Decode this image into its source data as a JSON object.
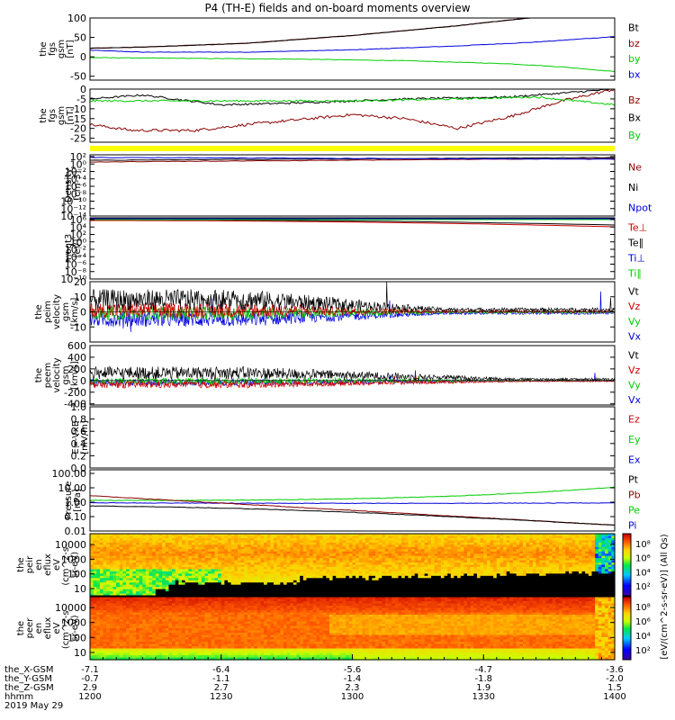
{
  "title": "P4 (TH-E) fields and on-board moments overview",
  "colors": {
    "black": "#000000",
    "red": "#cc0000",
    "dark_red": "#8b0000",
    "blue": "#0000dd",
    "green": "#00cc00",
    "yellow": "#ffff00"
  },
  "chart_data": [
    {
      "type": "line",
      "panel": "fgs-mag",
      "ylabel": [
        "the",
        "fgs",
        "gsm",
        "[nT]"
      ],
      "ylim": [
        -60,
        100
      ],
      "yticks": [
        100,
        50,
        0,
        -50
      ],
      "legend": [
        "Bt",
        "bz",
        "by",
        "bx"
      ],
      "series": [
        {
          "name": "Bt",
          "color": "#000000",
          "x": [
            0,
            0.1,
            0.3,
            0.5,
            0.7,
            0.8,
            0.9,
            1.0
          ],
          "values": [
            22,
            25,
            35,
            55,
            80,
            95,
            108,
            120
          ]
        },
        {
          "name": "bz",
          "color": "#8b0000",
          "x": [
            0,
            0.1,
            0.3,
            0.5,
            0.7,
            0.8,
            0.9,
            1.0
          ],
          "values": [
            22,
            25,
            35,
            55,
            80,
            95,
            108,
            120
          ]
        },
        {
          "name": "by",
          "color": "#00cc00",
          "x": [
            0,
            0.2,
            0.4,
            0.6,
            0.8,
            0.9,
            1.0
          ],
          "values": [
            -2,
            -4,
            -6,
            -10,
            -18,
            -26,
            -38
          ]
        },
        {
          "name": "bx",
          "color": "#0000dd",
          "x": [
            0,
            0.1,
            0.3,
            0.5,
            0.7,
            0.85,
            1.0
          ],
          "values": [
            17,
            12,
            12,
            18,
            28,
            38,
            52
          ]
        }
      ]
    },
    {
      "type": "line",
      "panel": "fgs-dc",
      "ylabel": [
        "the",
        "fgs",
        "gsm",
        "[nT]"
      ],
      "ylim": [
        -27,
        0
      ],
      "yticks": [
        0,
        -5,
        -10,
        -15,
        -20,
        -25
      ],
      "legend": [
        "Bz",
        "Bx",
        "By"
      ],
      "series": [
        {
          "name": "Bz",
          "color": "#8b0000",
          "x": [
            0,
            0.08,
            0.2,
            0.3,
            0.5,
            0.6,
            0.7,
            0.8,
            0.9,
            1.0
          ],
          "values": [
            -18,
            -21,
            -21,
            -18,
            -13,
            -15,
            -20,
            -14,
            -6,
            0
          ]
        },
        {
          "name": "Bx",
          "color": "#000000",
          "x": [
            0,
            0.1,
            0.25,
            0.4,
            0.6,
            0.8,
            0.9,
            1.0
          ],
          "values": [
            -5,
            -3,
            -8,
            -7,
            -5,
            -4,
            -2,
            0
          ]
        },
        {
          "name": "By",
          "color": "#00cc00",
          "x": [
            0,
            0.3,
            0.5,
            0.7,
            0.85,
            1.0
          ],
          "values": [
            -6,
            -6,
            -6,
            -5,
            -4,
            -8
          ]
        }
      ]
    },
    {
      "type": "line",
      "panel": "density",
      "scale": "log",
      "ylabel": [
        "Density",
        "[cm-3]"
      ],
      "yticks": [
        "10²",
        "10⁰",
        "10⁻²",
        "10⁻⁴",
        "10⁻⁶",
        "10⁻⁸",
        "10⁻¹⁰",
        "10⁻¹²",
        "10⁻¹⁴"
      ],
      "legend": [
        "Ne",
        "Ni",
        "Npot"
      ],
      "series": [
        {
          "name": "Ne",
          "color": "#8b0000"
        },
        {
          "name": "Ni",
          "color": "#000000"
        },
        {
          "name": "Npot",
          "color": "#0000dd"
        }
      ]
    },
    {
      "type": "line",
      "panel": "temperature",
      "scale": "log",
      "ylabel": [
        "moqt3",
        "[eV]"
      ],
      "yticks": [
        "10⁶",
        "10⁴",
        "10²",
        "10⁰",
        "10⁻²",
        "10⁻⁴",
        "10⁻⁶",
        "10⁻⁸",
        "10⁻¹⁰"
      ],
      "legend": [
        "Te⊥",
        "Te∥",
        "Ti⊥",
        "Ti∥"
      ],
      "series": [
        {
          "name": "Te⊥",
          "color": "#cc0000"
        },
        {
          "name": "Te∥",
          "color": "#000000"
        },
        {
          "name": "Ti⊥",
          "color": "#0000dd"
        },
        {
          "name": "Ti∥",
          "color": "#00cc00"
        }
      ]
    },
    {
      "type": "line",
      "panel": "peim-velocity",
      "ylabel": [
        "the",
        "peim",
        "velocity",
        "gsm",
        "[km/s]"
      ],
      "ylim": [
        -20,
        20
      ],
      "yticks": [
        20,
        10,
        0,
        -10
      ],
      "legend": [
        "Vt",
        "Vz",
        "Vy",
        "Vx"
      ],
      "series": [
        {
          "name": "Vt",
          "color": "#000000"
        },
        {
          "name": "Vz",
          "color": "#cc0000"
        },
        {
          "name": "Vy",
          "color": "#00cc00"
        },
        {
          "name": "Vx",
          "color": "#0000dd"
        }
      ]
    },
    {
      "type": "line",
      "panel": "peem-velocity",
      "ylabel": [
        "the",
        "peem",
        "velocity",
        "gsm",
        "[km/s]"
      ],
      "ylim": [
        -420,
        600
      ],
      "yticks": [
        600,
        400,
        200,
        0,
        -200,
        -400
      ],
      "legend": [
        "Vt",
        "Vz",
        "Vy",
        "Vx"
      ],
      "series": [
        {
          "name": "Vt",
          "color": "#000000"
        },
        {
          "name": "Vz",
          "color": "#cc0000"
        },
        {
          "name": "Vy",
          "color": "#00cc00"
        },
        {
          "name": "Vx",
          "color": "#0000dd"
        }
      ]
    },
    {
      "type": "line",
      "panel": "efield",
      "ylabel": [
        "E=-VxB",
        "[mV/m]"
      ],
      "ylim": [
        0,
        1
      ],
      "yticks": [
        "1.0",
        "0.8",
        "0.6",
        "0.4",
        "0.2",
        "0.0"
      ],
      "legend": [
        "Ez",
        "Ey",
        "Ex"
      ],
      "series": [
        {
          "name": "Ez",
          "color": "#cc0000"
        },
        {
          "name": "Ey",
          "color": "#00cc00"
        },
        {
          "name": "Ex",
          "color": "#0000dd"
        }
      ]
    },
    {
      "type": "line",
      "panel": "pressure",
      "scale": "log",
      "ylabel": [
        "Pressure",
        "[nPa]"
      ],
      "yticks": [
        "100.00",
        "10.00",
        "1.00",
        "0.10",
        "0.01"
      ],
      "legend": [
        "Pt",
        "Pb",
        "Pe",
        "Pi"
      ],
      "series": [
        {
          "name": "Pt",
          "color": "#000000"
        },
        {
          "name": "Pb",
          "color": "#8b0000"
        },
        {
          "name": "Pe",
          "color": "#00cc00"
        },
        {
          "name": "Pi",
          "color": "#0000dd"
        }
      ]
    },
    {
      "type": "heatmap",
      "panel": "peir-eflux",
      "ylabel": [
        "the",
        "peir",
        "en",
        "eflux",
        "eV",
        "(cm^2-s-",
        "sr-eV)"
      ],
      "yticks": [
        "10000",
        "1000",
        "100",
        "10"
      ]
    },
    {
      "type": "heatmap",
      "panel": "peer-eflux",
      "ylabel": [
        "the",
        "peer",
        "en",
        "eflux",
        "eV",
        "(cm^2-s-",
        "sr-eV)"
      ],
      "yticks": [
        "10000",
        "1000",
        "100",
        "10"
      ]
    }
  ],
  "colorbar": {
    "title": "[eV/(cm^2-s-sr-eV)] (All Qs)",
    "top_ticks": [
      "10⁸",
      "10⁶",
      "10⁴",
      "10²"
    ],
    "bottom_ticks": [
      "10⁸",
      "10⁶",
      "10⁴",
      "10²"
    ]
  },
  "x_axis": {
    "tick_fracs": [
      0,
      0.25,
      0.5,
      0.75,
      1.0
    ],
    "rows": [
      {
        "label": "the_X-GSM",
        "values": [
          "-7.1",
          "-6.4",
          "-5.6",
          "-4.7",
          "-3.6"
        ]
      },
      {
        "label": "the_Y-GSM",
        "values": [
          "-0.7",
          "-1.1",
          "-1.4",
          "-1.8",
          "-2.0"
        ]
      },
      {
        "label": "the_Z-GSM",
        "values": [
          "2.9",
          "2.7",
          "2.3",
          "1.9",
          "1.5"
        ]
      },
      {
        "label": "hhmm",
        "values": [
          "1200",
          "1230",
          "1300",
          "1330",
          "1400"
        ]
      }
    ],
    "date": "2019 May 29"
  }
}
